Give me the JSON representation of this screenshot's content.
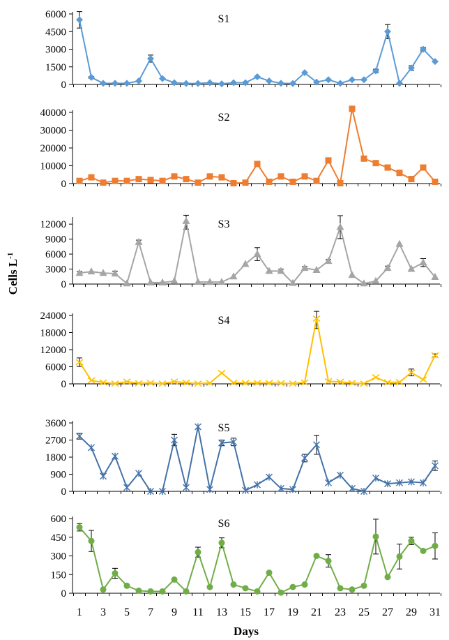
{
  "chart_data": {
    "type": "line",
    "ylabel": "Cells L",
    "ylabel_sup": "-1",
    "xlabel": "Days",
    "x": [
      1,
      2,
      3,
      4,
      5,
      6,
      7,
      8,
      9,
      10,
      11,
      12,
      13,
      14,
      15,
      16,
      17,
      18,
      19,
      20,
      21,
      22,
      23,
      24,
      25,
      26,
      27,
      28,
      29,
      30,
      31
    ],
    "xtick_labels": [
      "1",
      "3",
      "5",
      "7",
      "9",
      "11",
      "13",
      "15",
      "17",
      "19",
      "21",
      "23",
      "25",
      "27",
      "29",
      "31"
    ],
    "panels": [
      {
        "name": "S1",
        "color": "#5B9BD5",
        "marker": "diamond",
        "ylim": [
          0,
          6000
        ],
        "yticks": [
          "0",
          "1500",
          "3000",
          "4500",
          "6000"
        ],
        "values": [
          5500,
          600,
          100,
          100,
          100,
          300,
          2200,
          500,
          150,
          80,
          80,
          150,
          50,
          150,
          150,
          650,
          300,
          100,
          80,
          1000,
          200,
          400,
          100,
          400,
          400,
          1150,
          4500,
          100,
          1400,
          3000,
          1950
        ],
        "errors": [
          700,
          80,
          0,
          0,
          0,
          0,
          300,
          0,
          0,
          0,
          0,
          0,
          0,
          0,
          0,
          0,
          0,
          0,
          0,
          0,
          0,
          0,
          0,
          0,
          0,
          150,
          600,
          0,
          200,
          150,
          0
        ]
      },
      {
        "name": "S2",
        "color": "#ED7D31",
        "marker": "square",
        "ylim": [
          0,
          40000
        ],
        "yticks": [
          "0",
          "10000",
          "20000",
          "30000",
          "40000"
        ],
        "values": [
          1500,
          3500,
          500,
          1500,
          1500,
          2500,
          2000,
          1500,
          4000,
          2500,
          500,
          4000,
          3500,
          200,
          500,
          11000,
          1000,
          4000,
          1000,
          4000,
          1500,
          13000,
          200,
          42000,
          14000,
          11500,
          9000,
          6000,
          2500,
          9000,
          1000
        ],
        "errors": [
          0,
          0,
          0,
          0,
          0,
          0,
          0,
          0,
          0,
          0,
          0,
          0,
          0,
          0,
          0,
          0,
          0,
          0,
          0,
          0,
          0,
          0,
          0,
          0,
          0,
          0,
          0,
          1500,
          1500,
          0,
          0
        ]
      },
      {
        "name": "S3",
        "color": "#A5A5A5",
        "marker": "triangle",
        "ylim": [
          0,
          13000
        ],
        "yticks": [
          "0",
          "3000",
          "6000",
          "9000",
          "12000"
        ],
        "values": [
          2200,
          2500,
          2200,
          2100,
          100,
          8400,
          300,
          300,
          600,
          12600,
          400,
          400,
          400,
          1500,
          4000,
          6000,
          2600,
          2600,
          200,
          3200,
          2800,
          4600,
          11400,
          1800,
          100,
          600,
          3200,
          8000,
          3000,
          4300,
          1400
        ],
        "errors": [
          300,
          0,
          0,
          500,
          0,
          400,
          0,
          0,
          0,
          1600,
          0,
          0,
          0,
          0,
          0,
          1300,
          0,
          400,
          0,
          300,
          0,
          300,
          2300,
          0,
          0,
          0,
          400,
          0,
          0,
          800,
          0
        ]
      },
      {
        "name": "S4",
        "color": "#FFC000",
        "marker": "x",
        "ylim": [
          0,
          24000
        ],
        "yticks": [
          "0",
          "6000",
          "12000",
          "18000",
          "24000"
        ],
        "values": [
          7600,
          1200,
          500,
          100,
          800,
          200,
          300,
          100,
          800,
          400,
          100,
          300,
          3800,
          400,
          300,
          300,
          300,
          200,
          100,
          500,
          22900,
          900,
          700,
          300,
          100,
          2300,
          500,
          600,
          4000,
          1500,
          10000
        ],
        "errors": [
          1500,
          0,
          0,
          0,
          0,
          0,
          0,
          0,
          0,
          0,
          0,
          0,
          0,
          0,
          0,
          0,
          0,
          0,
          0,
          0,
          3500,
          0,
          0,
          0,
          0,
          0,
          0,
          0,
          1200,
          0,
          500
        ]
      },
      {
        "name": "S5",
        "color": "#4472A8",
        "marker": "star",
        "ylim": [
          0,
          3600
        ],
        "yticks": [
          "0",
          "900",
          "1800",
          "2700",
          "3600"
        ],
        "values": [
          2900,
          2300,
          800,
          1850,
          200,
          950,
          0,
          0,
          2700,
          200,
          3400,
          100,
          2550,
          2600,
          50,
          350,
          750,
          150,
          100,
          1750,
          2450,
          450,
          850,
          150,
          0,
          700,
          400,
          450,
          500,
          450,
          1350
        ],
        "errors": [
          150,
          0,
          0,
          0,
          0,
          0,
          0,
          0,
          300,
          0,
          0,
          0,
          150,
          200,
          0,
          0,
          0,
          0,
          0,
          200,
          500,
          0,
          0,
          0,
          0,
          0,
          0,
          0,
          0,
          0,
          250
        ]
      },
      {
        "name": "S6",
        "color": "#70AD47",
        "marker": "circle",
        "ylim": [
          0,
          600
        ],
        "yticks": [
          "0",
          "150",
          "300",
          "450",
          "600"
        ],
        "values": [
          530,
          420,
          30,
          160,
          60,
          20,
          15,
          15,
          110,
          15,
          330,
          50,
          405,
          70,
          40,
          15,
          165,
          5,
          50,
          70,
          300,
          260,
          40,
          30,
          60,
          455,
          130,
          295,
          420,
          340,
          380
        ],
        "errors": [
          30,
          85,
          0,
          40,
          0,
          0,
          0,
          0,
          0,
          0,
          40,
          0,
          40,
          0,
          0,
          0,
          0,
          0,
          0,
          0,
          0,
          50,
          0,
          0,
          0,
          140,
          0,
          100,
          30,
          0,
          105
        ]
      }
    ]
  }
}
